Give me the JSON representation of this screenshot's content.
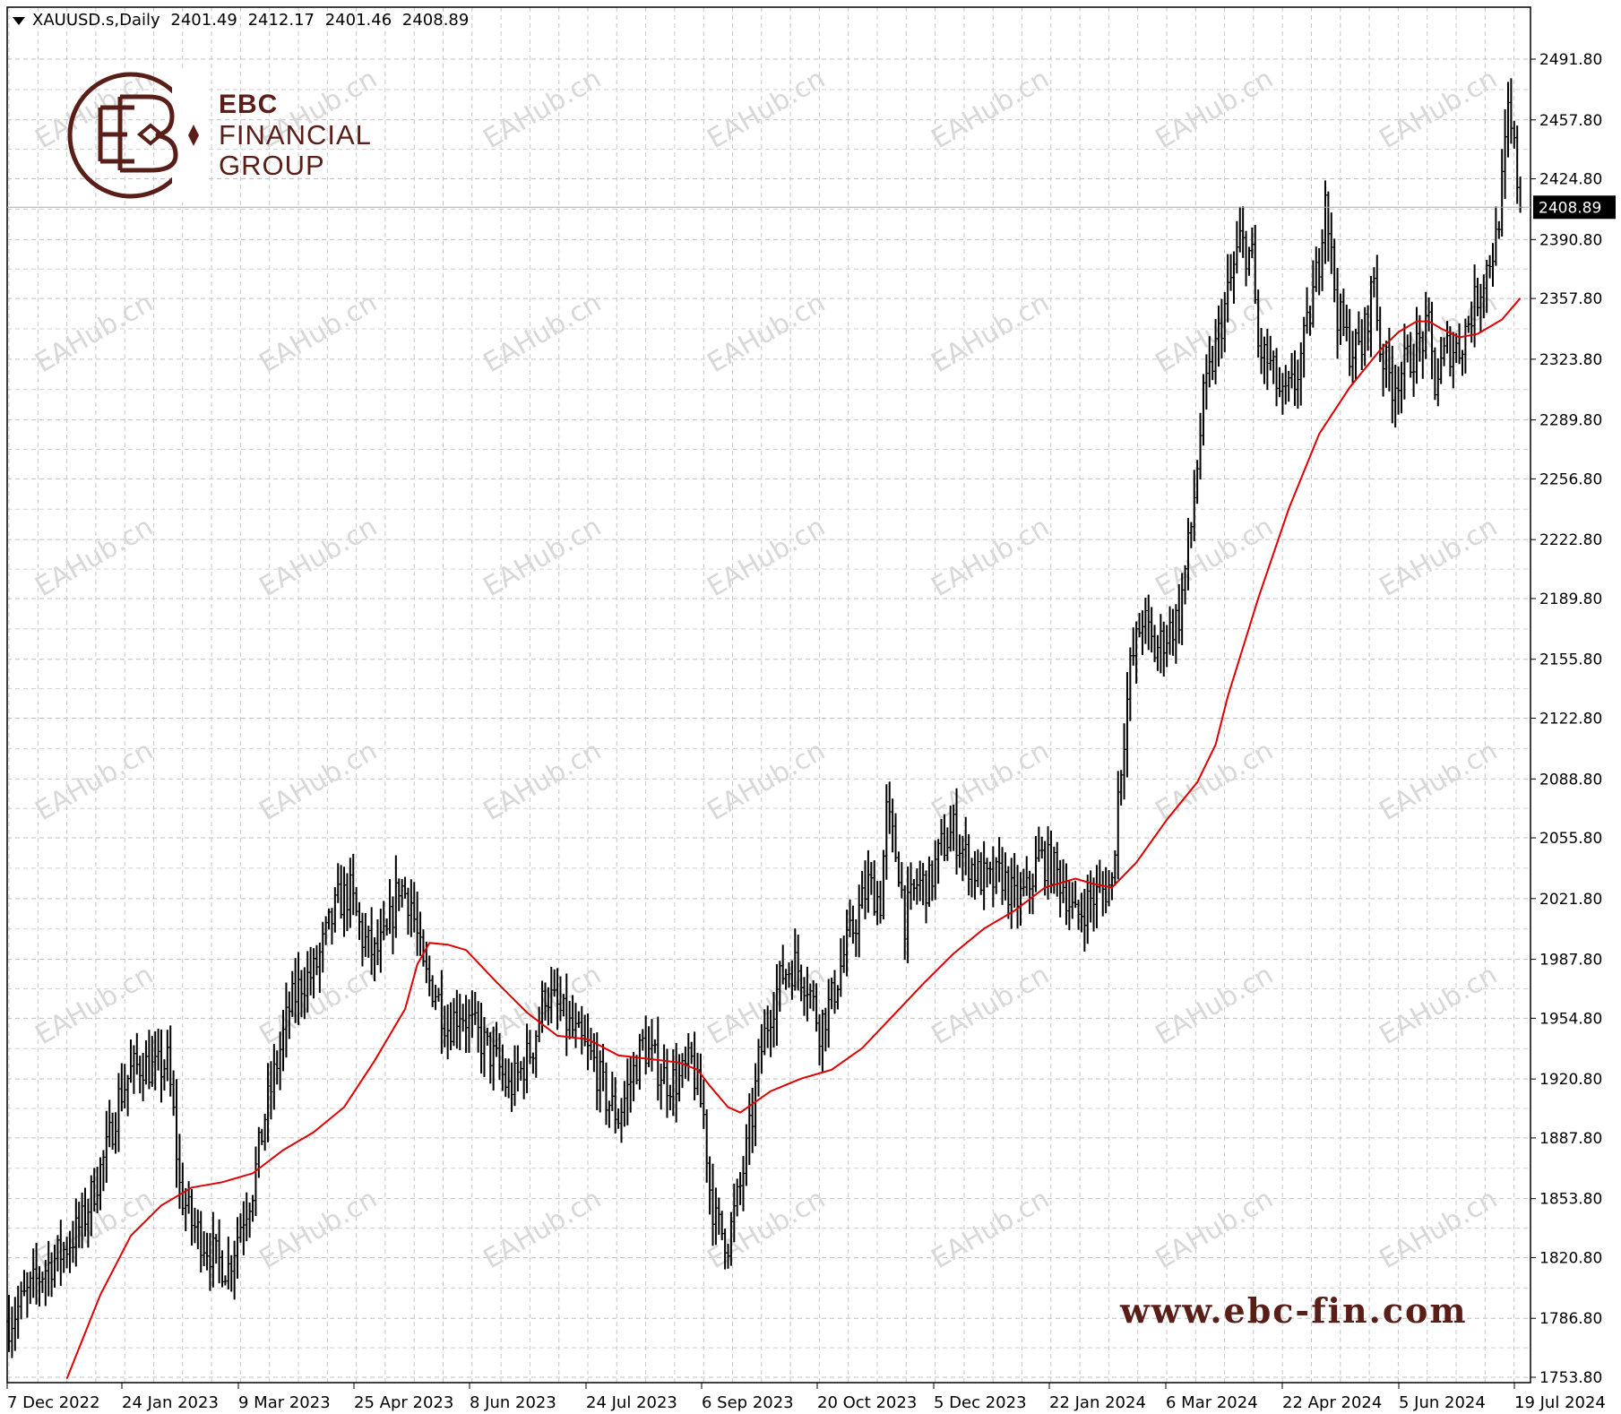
{
  "header": {
    "symbol": "XAUUSD.s,Daily",
    "open": "2401.49",
    "high": "2412.17",
    "low": "2401.46",
    "close": "2408.89"
  },
  "brand": {
    "line1": "EBC",
    "line2": "FINANCIAL",
    "line3": "GROUP",
    "url": "www.ebc-fin.com",
    "color": "#5a1e18"
  },
  "watermark": "EAHub.cn",
  "chart_data": {
    "type": "candlestick",
    "title": "XAUUSD.s,Daily",
    "current_price": 2408.89,
    "ylim": [
      1753.8,
      2508.0
    ],
    "y_ticks": [
      "2491.80",
      "2457.80",
      "2424.80",
      "2390.80",
      "2357.80",
      "2323.80",
      "2289.80",
      "2256.80",
      "2222.80",
      "2189.80",
      "2155.80",
      "2122.80",
      "2088.80",
      "2055.80",
      "2021.80",
      "1987.80",
      "1954.80",
      "1920.80",
      "1887.80",
      "1853.80",
      "1820.80",
      "1786.80",
      "1753.80"
    ],
    "x_ticks": [
      "7 Dec 2022",
      "24 Jan 2023",
      "9 Mar 2023",
      "25 Apr 2023",
      "8 Jun 2023",
      "24 Jul 2023",
      "6 Sep 2023",
      "20 Oct 2023",
      "5 Dec 2023",
      "22 Jan 2024",
      "6 Mar 2024",
      "22 Apr 2024",
      "5 Jun 2024",
      "19 Jul 2024"
    ],
    "grid": true,
    "bar_color": "#000000",
    "ma_color": "#e00000",
    "price_path": [
      [
        0,
        1785
      ],
      [
        6,
        1800
      ],
      [
        12,
        1815
      ],
      [
        18,
        1825
      ],
      [
        24,
        1840
      ],
      [
        28,
        1860
      ],
      [
        32,
        1880
      ],
      [
        36,
        1910
      ],
      [
        40,
        1925
      ],
      [
        44,
        1930
      ],
      [
        48,
        1925
      ],
      [
        52,
        1930
      ],
      [
        54,
        1900
      ],
      [
        56,
        1860
      ],
      [
        60,
        1840
      ],
      [
        64,
        1830
      ],
      [
        68,
        1820
      ],
      [
        72,
        1815
      ],
      [
        76,
        1840
      ],
      [
        80,
        1860
      ],
      [
        84,
        1900
      ],
      [
        88,
        1930
      ],
      [
        92,
        1960
      ],
      [
        96,
        1975
      ],
      [
        100,
        1980
      ],
      [
        104,
        2000
      ],
      [
        108,
        2020
      ],
      [
        112,
        2025
      ],
      [
        116,
        2000
      ],
      [
        120,
        1990
      ],
      [
        124,
        2000
      ],
      [
        128,
        2030
      ],
      [
        132,
        2020
      ],
      [
        136,
        1980
      ],
      [
        140,
        1970
      ],
      [
        144,
        1950
      ],
      [
        148,
        1960
      ],
      [
        152,
        1950
      ],
      [
        156,
        1940
      ],
      [
        160,
        1930
      ],
      [
        164,
        1915
      ],
      [
        168,
        1925
      ],
      [
        172,
        1940
      ],
      [
        176,
        1970
      ],
      [
        180,
        1960
      ],
      [
        184,
        1950
      ],
      [
        188,
        1940
      ],
      [
        192,
        1930
      ],
      [
        196,
        1910
      ],
      [
        200,
        1900
      ],
      [
        204,
        1920
      ],
      [
        208,
        1940
      ],
      [
        212,
        1930
      ],
      [
        216,
        1920
      ],
      [
        220,
        1920
      ],
      [
        224,
        1930
      ],
      [
        228,
        1900
      ],
      [
        230,
        1860
      ],
      [
        232,
        1840
      ],
      [
        236,
        1830
      ],
      [
        240,
        1860
      ],
      [
        244,
        1900
      ],
      [
        246,
        1930
      ],
      [
        250,
        1960
      ],
      [
        254,
        1980
      ],
      [
        258,
        1985
      ],
      [
        262,
        1975
      ],
      [
        266,
        1950
      ],
      [
        270,
        1965
      ],
      [
        274,
        1990
      ],
      [
        278,
        2010
      ],
      [
        282,
        2030
      ],
      [
        286,
        2020
      ],
      [
        288,
        2070
      ],
      [
        292,
        2040
      ],
      [
        294,
        2010
      ],
      [
        298,
        2030
      ],
      [
        302,
        2030
      ],
      [
        306,
        2050
      ],
      [
        310,
        2060
      ],
      [
        314,
        2045
      ],
      [
        318,
        2035
      ],
      [
        322,
        2030
      ],
      [
        326,
        2035
      ],
      [
        330,
        2020
      ],
      [
        334,
        2025
      ],
      [
        338,
        2045
      ],
      [
        342,
        2040
      ],
      [
        346,
        2030
      ],
      [
        350,
        2010
      ],
      [
        354,
        2020
      ],
      [
        358,
        2025
      ],
      [
        362,
        2030
      ],
      [
        364,
        2080
      ],
      [
        368,
        2150
      ],
      [
        372,
        2180
      ],
      [
        376,
        2160
      ],
      [
        380,
        2170
      ],
      [
        384,
        2180
      ],
      [
        388,
        2230
      ],
      [
        392,
        2300
      ],
      [
        396,
        2330
      ],
      [
        400,
        2360
      ],
      [
        404,
        2390
      ],
      [
        408,
        2380
      ],
      [
        410,
        2330
      ],
      [
        414,
        2320
      ],
      [
        418,
        2300
      ],
      [
        422,
        2310
      ],
      [
        426,
        2340
      ],
      [
        430,
        2380
      ],
      [
        432,
        2420
      ],
      [
        434,
        2380
      ],
      [
        436,
        2350
      ],
      [
        440,
        2330
      ],
      [
        444,
        2330
      ],
      [
        448,
        2370
      ],
      [
        450,
        2330
      ],
      [
        454,
        2310
      ],
      [
        458,
        2320
      ],
      [
        462,
        2330
      ],
      [
        466,
        2340
      ],
      [
        468,
        2310
      ],
      [
        472,
        2330
      ],
      [
        476,
        2330
      ],
      [
        480,
        2350
      ],
      [
        484,
        2370
      ],
      [
        488,
        2390
      ],
      [
        490,
        2420
      ],
      [
        492,
        2460
      ],
      [
        494,
        2440
      ],
      [
        496,
        2408.89
      ]
    ],
    "ma_path": [
      [
        19,
        1753
      ],
      [
        30,
        1800
      ],
      [
        40,
        1833
      ],
      [
        50,
        1850
      ],
      [
        60,
        1860
      ],
      [
        70,
        1863
      ],
      [
        80,
        1868
      ],
      [
        90,
        1881
      ],
      [
        100,
        1891
      ],
      [
        110,
        1905
      ],
      [
        120,
        1931
      ],
      [
        130,
        1960
      ],
      [
        134,
        1985
      ],
      [
        138,
        1997
      ],
      [
        144,
        1996
      ],
      [
        150,
        1993
      ],
      [
        160,
        1975
      ],
      [
        170,
        1958
      ],
      [
        180,
        1945
      ],
      [
        190,
        1943
      ],
      [
        200,
        1934
      ],
      [
        210,
        1932
      ],
      [
        220,
        1930
      ],
      [
        226,
        1926
      ],
      [
        230,
        1917
      ],
      [
        236,
        1905
      ],
      [
        240,
        1902
      ],
      [
        250,
        1914
      ],
      [
        260,
        1921
      ],
      [
        270,
        1926
      ],
      [
        280,
        1938
      ],
      [
        290,
        1956
      ],
      [
        300,
        1974
      ],
      [
        310,
        1991
      ],
      [
        320,
        2005
      ],
      [
        330,
        2015
      ],
      [
        340,
        2028
      ],
      [
        350,
        2033
      ],
      [
        356,
        2030
      ],
      [
        362,
        2028
      ],
      [
        370,
        2042
      ],
      [
        380,
        2066
      ],
      [
        390,
        2087
      ],
      [
        396,
        2108
      ],
      [
        400,
        2135
      ],
      [
        410,
        2190
      ],
      [
        420,
        2240
      ],
      [
        430,
        2282
      ],
      [
        440,
        2308
      ],
      [
        450,
        2329
      ],
      [
        456,
        2339
      ],
      [
        462,
        2345
      ],
      [
        466,
        2345
      ],
      [
        470,
        2341
      ],
      [
        476,
        2336
      ],
      [
        482,
        2338
      ],
      [
        490,
        2346
      ],
      [
        496,
        2358
      ]
    ],
    "total_bars": 498
  }
}
